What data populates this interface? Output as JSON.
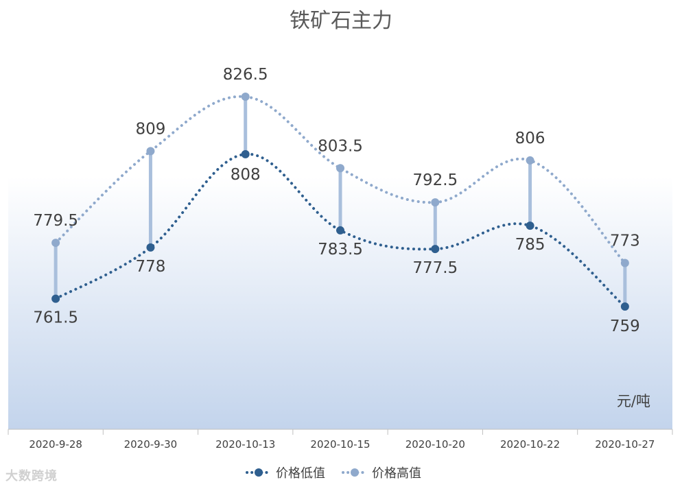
{
  "chart_data": {
    "type": "line",
    "title": "铁矿石主力",
    "unit_label": "元/吨",
    "categories": [
      "2020-9-28",
      "2020-9-30",
      "2020-10-13",
      "2020-10-15",
      "2020-10-20",
      "2020-10-22",
      "2020-10-27"
    ],
    "series": [
      {
        "name": "价格低值",
        "values": [
          761.5,
          778,
          808,
          783.5,
          777.5,
          785,
          759
        ],
        "color": "#2f5f8f"
      },
      {
        "name": "价格高值",
        "values": [
          779.5,
          809,
          826.5,
          803.5,
          792.5,
          806,
          773
        ],
        "color": "#8fa9cc"
      }
    ],
    "low_labels": [
      "761.5",
      "778",
      "808",
      "783.5",
      "777.5",
      "785",
      "759"
    ],
    "high_labels": [
      "779.5",
      "809",
      "826.5",
      "803.5",
      "792.5",
      "806",
      "773"
    ],
    "legend_position": "bottom",
    "grid": false,
    "high_low_lines": true
  },
  "watermark": "大数跨境"
}
